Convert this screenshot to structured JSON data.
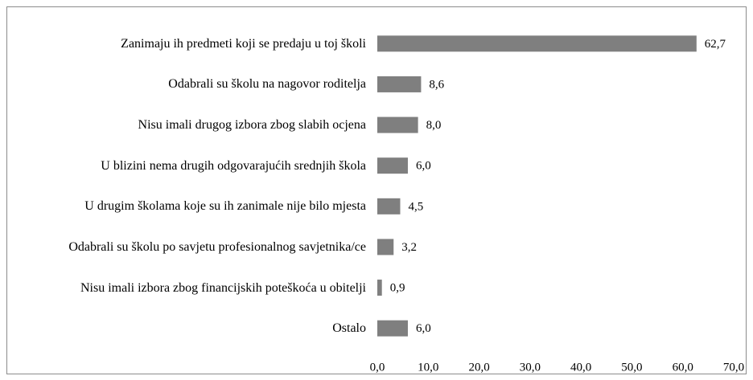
{
  "chart_data": {
    "type": "bar",
    "orientation": "horizontal",
    "categories": [
      "Zanimaju ih predmeti koji se predaju u toj školi",
      "Odabrali su školu na nagovor roditelja",
      "Nisu imali drugog izbora zbog slabih ocjena",
      "U blizini nema drugih odgovarajućih srednjih škola",
      "U drugim školama koje su ih zanimale nije bilo mjesta",
      "Odabrali su školu po savjetu profesionalnog savjetnika/ce",
      "Nisu imali izbora zbog financijskih poteškoća u obitelji",
      "Ostalo"
    ],
    "values": [
      62.7,
      8.6,
      8.0,
      6.0,
      4.5,
      3.2,
      0.9,
      6.0
    ],
    "value_labels": [
      "62,7",
      "8,6",
      "8,0",
      "6,0",
      "4,5",
      "3,2",
      "0,9",
      "6,0"
    ],
    "color": "#7f7f7f",
    "xlim": [
      0,
      70
    ],
    "xticks": [
      {
        "value": 0,
        "label": "0,0"
      },
      {
        "value": 10,
        "label": "10,0"
      },
      {
        "value": 20,
        "label": "20,0"
      },
      {
        "value": 30,
        "label": "30,0"
      },
      {
        "value": 40,
        "label": "40,0"
      },
      {
        "value": 50,
        "label": "50,0"
      },
      {
        "value": 60,
        "label": "60,0"
      },
      {
        "value": 70,
        "label": "70,0"
      }
    ]
  }
}
